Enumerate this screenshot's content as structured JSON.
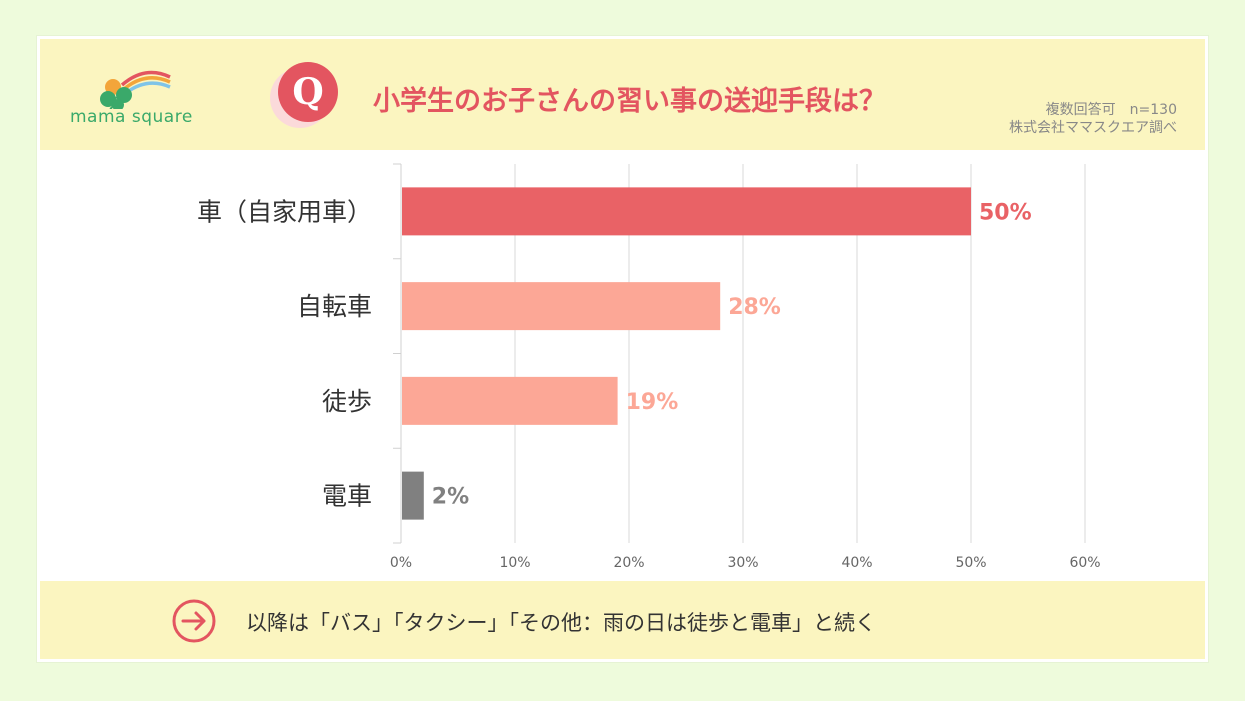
{
  "brand": {
    "logo_text": "mama square"
  },
  "header": {
    "q_letter": "Q",
    "title": "小学生のお子さんの習い事の送迎手段は？",
    "meta_line1": "複数回答可　n=130",
    "meta_line2": "株式会社ママスクエア調べ"
  },
  "colors": {
    "top": "#e96266",
    "mid": "#fca796",
    "low": "#808080",
    "accent": "#e35560"
  },
  "chart_data": {
    "type": "bar",
    "orientation": "horizontal",
    "categories": [
      "車（自家用車）",
      "自転車",
      "徒歩",
      "電車"
    ],
    "values": [
      50,
      28,
      19,
      2
    ],
    "value_labels": [
      "50%",
      "28%",
      "19%",
      "2%"
    ],
    "xlim": [
      0,
      60
    ],
    "ticks": [
      0,
      10,
      20,
      30,
      40,
      50,
      60
    ],
    "tick_labels": [
      "0%",
      "10%",
      "20%",
      "30%",
      "40%",
      "50%",
      "60%"
    ],
    "grid": true
  },
  "footer": {
    "arrow_icon": "arrow-right-circle-icon",
    "text": "以降は「バス」「タクシー」「その他：雨の日は徒歩と電車」と続く"
  }
}
